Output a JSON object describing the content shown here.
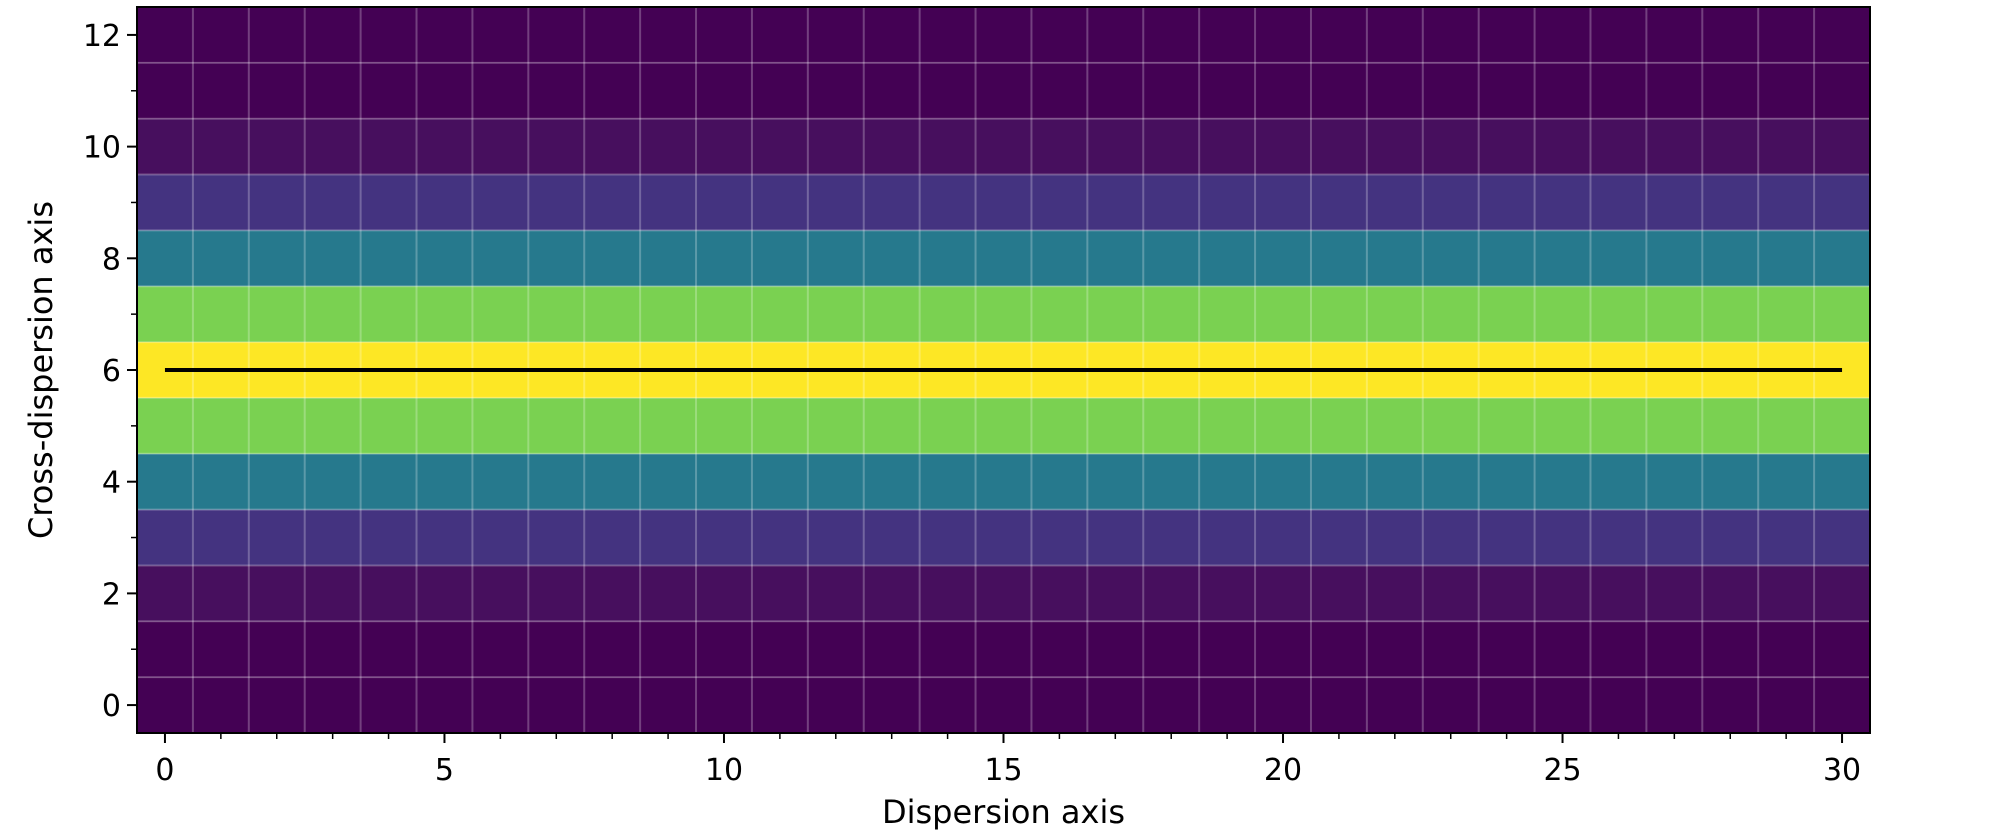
{
  "chart_data": {
    "type": "heatmap",
    "title": "",
    "xlabel": "Dispersion axis",
    "ylabel": "Cross-dispersion axis",
    "xlim": [
      -0.5,
      30.5
    ],
    "ylim": [
      -0.5,
      12.5
    ],
    "x_ticks": [
      0,
      5,
      10,
      15,
      20,
      25,
      30
    ],
    "y_ticks": [
      0,
      2,
      4,
      6,
      8,
      10,
      12
    ],
    "x_minor_ticks": [
      1,
      2,
      3,
      4,
      6,
      7,
      8,
      9,
      11,
      12,
      13,
      14,
      16,
      17,
      18,
      19,
      21,
      22,
      23,
      24,
      26,
      27,
      28,
      29
    ],
    "y_minor_ticks": [
      1,
      3,
      5,
      7,
      9,
      11
    ],
    "grid": true,
    "colormap": "viridis",
    "columns": 31,
    "rows": [
      0,
      1,
      2,
      3,
      4,
      5,
      6,
      7,
      8,
      9,
      10,
      11,
      12
    ],
    "row_values": [
      0.0,
      0.0,
      0.04,
      0.2,
      0.6,
      0.85,
      1.0,
      0.85,
      0.6,
      0.2,
      0.04,
      0.0,
      0.0
    ],
    "row_colors": [
      "#440154",
      "#440154",
      "#470f5e",
      "#443380",
      "#26798d",
      "#7ad151",
      "#fde725",
      "#7ad151",
      "#26798d",
      "#443380",
      "#470f5e",
      "#440154",
      "#440154"
    ],
    "trace": {
      "x": [
        0,
        30
      ],
      "y": [
        6,
        6
      ],
      "color": "#000000"
    }
  }
}
